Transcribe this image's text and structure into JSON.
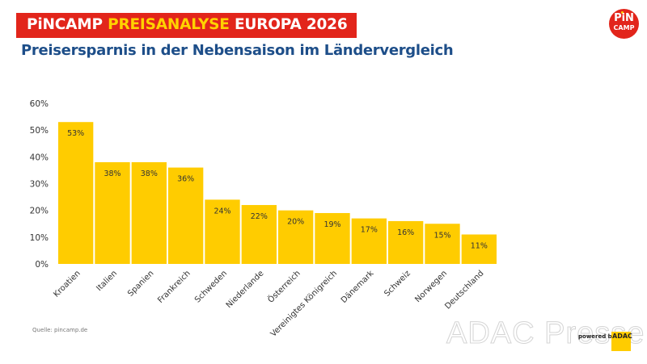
{
  "header": {
    "title_part1": "PiNCAMP ",
    "title_highlight": "PREISANALYSE",
    "title_part2": " EUROPA 2026",
    "subtitle": "Preisersparnis in der Nebensaison im Ländervergleich",
    "brand_color": "#e2251b",
    "highlight_color": "#ffd200",
    "subtitle_color": "#1d4e89"
  },
  "logo": {
    "line1": "PiN",
    "line2": "CAMP"
  },
  "footer": {
    "source": "Quelle: pincamp.de",
    "watermark": "ADAC Presse",
    "powered_by": "powered by",
    "adac": "ADAC"
  },
  "chart_data": {
    "type": "bar",
    "title": "Preisersparnis in der Nebensaison im Ländervergleich",
    "xlabel": "",
    "ylabel": "",
    "ylim": [
      0,
      60
    ],
    "yticks": [
      0,
      10,
      20,
      30,
      40,
      50,
      60
    ],
    "ytick_labels": [
      "0%",
      "10%",
      "20%",
      "30%",
      "40%",
      "50%",
      "60%"
    ],
    "grid": false,
    "bar_color": "#ffcc00",
    "categories": [
      "Kroatien",
      "Italien",
      "Spanien",
      "Frankreich",
      "Schweden",
      "Niederlande",
      "Österreich",
      "Vereinigtes Königreich",
      "Dänemark",
      "Schweiz",
      "Norwegen",
      "Deutschland"
    ],
    "values": [
      53,
      38,
      38,
      36,
      24,
      22,
      20,
      19,
      17,
      16,
      15,
      11
    ],
    "data_labels": [
      "53%",
      "38%",
      "38%",
      "36%",
      "24%",
      "22%",
      "20%",
      "19%",
      "17%",
      "16%",
      "15%",
      "11%"
    ]
  }
}
